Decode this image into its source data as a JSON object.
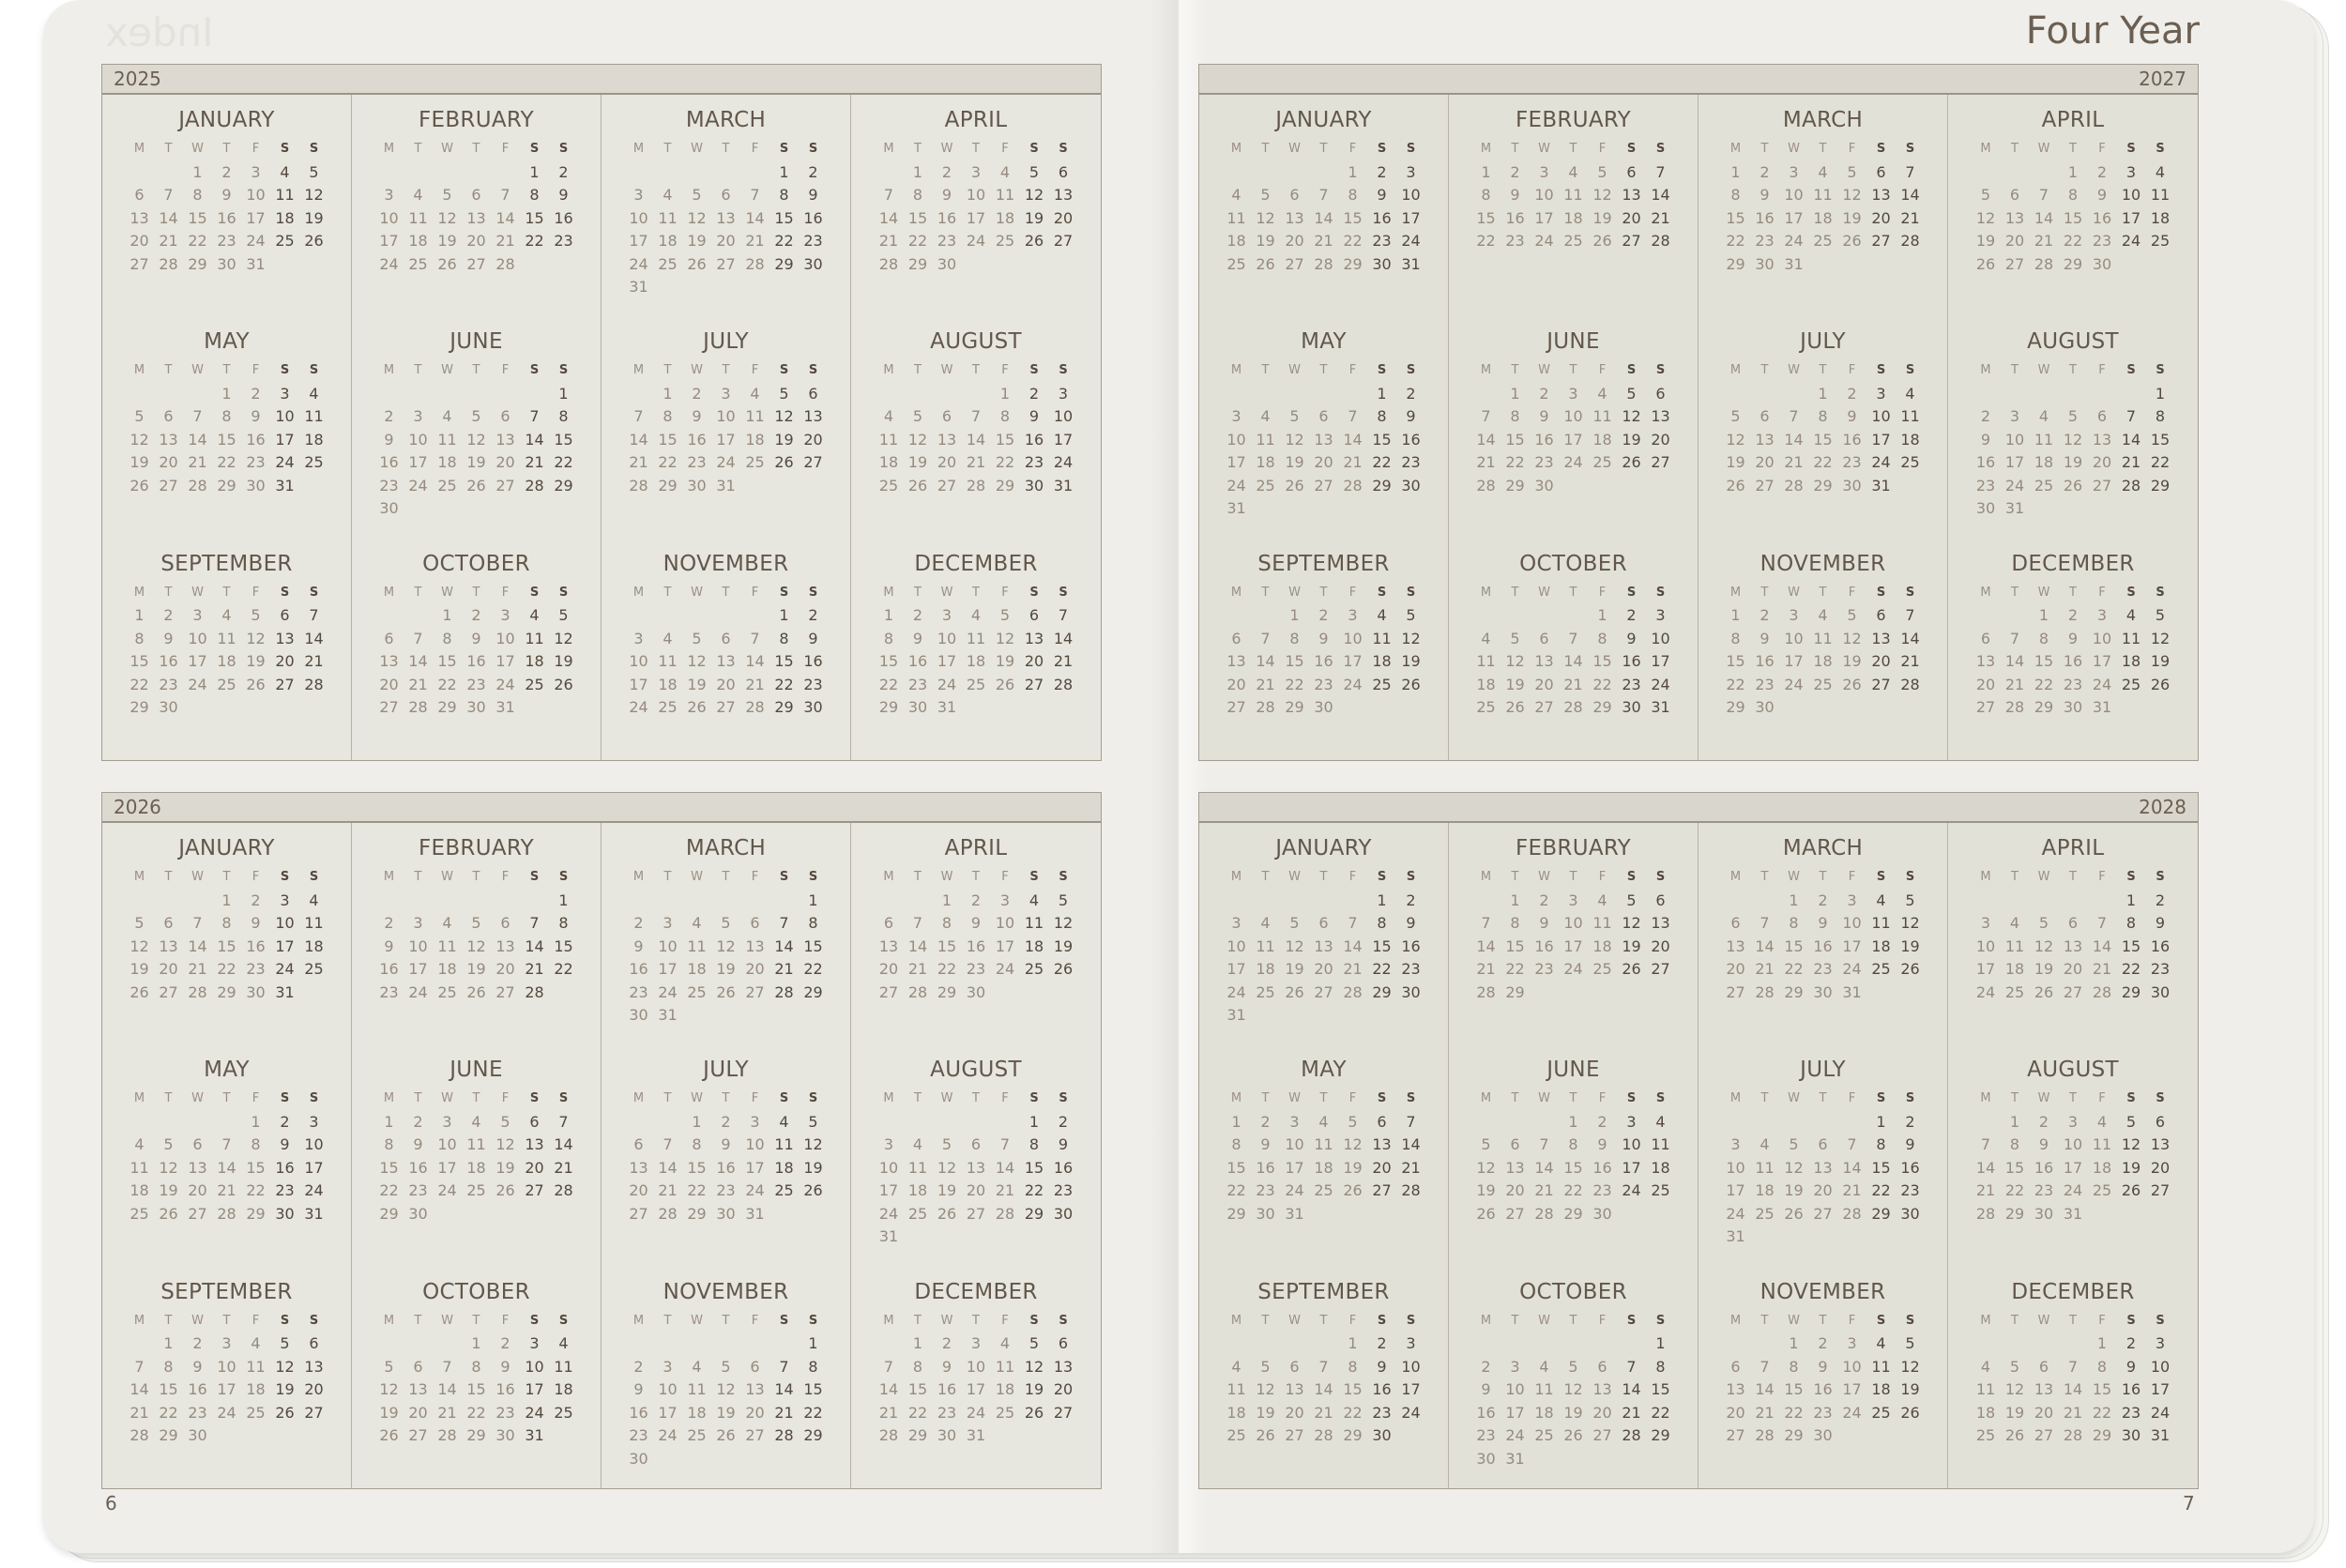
{
  "header": {
    "title": "Four Year",
    "watermark": "Index"
  },
  "pages": {
    "left_number": "6",
    "right_number": "7"
  },
  "weekdays": [
    "M",
    "T",
    "W",
    "T",
    "F",
    "S",
    "S"
  ],
  "colors": {
    "text": "#6b5f52",
    "weekend": "#54493d",
    "weekday_dim": "#968b7e",
    "border": "#a59d92",
    "header_band": "#dcd9d0"
  },
  "years": [
    {
      "label": "2025",
      "months": [
        {
          "name": "JANUARY",
          "starts_on": "Wed",
          "days": 31
        },
        {
          "name": "FEBRUARY",
          "starts_on": "Sat",
          "days": 28
        },
        {
          "name": "MARCH",
          "starts_on": "Sat",
          "days": 31
        },
        {
          "name": "APRIL",
          "starts_on": "Tue",
          "days": 30
        },
        {
          "name": "MAY",
          "starts_on": "Thu",
          "days": 31
        },
        {
          "name": "JUNE",
          "starts_on": "Sun",
          "days": 30
        },
        {
          "name": "JULY",
          "starts_on": "Tue",
          "days": 31
        },
        {
          "name": "AUGUST",
          "starts_on": "Fri",
          "days": 31
        },
        {
          "name": "SEPTEMBER",
          "starts_on": "Mon",
          "days": 30
        },
        {
          "name": "OCTOBER",
          "starts_on": "Wed",
          "days": 31
        },
        {
          "name": "NOVEMBER",
          "starts_on": "Sat",
          "days": 30
        },
        {
          "name": "DECEMBER",
          "starts_on": "Mon",
          "days": 31
        }
      ]
    },
    {
      "label": "2026",
      "months": [
        {
          "name": "JANUARY",
          "starts_on": "Thu",
          "days": 31
        },
        {
          "name": "FEBRUARY",
          "starts_on": "Sun",
          "days": 28
        },
        {
          "name": "MARCH",
          "starts_on": "Sun",
          "days": 31
        },
        {
          "name": "APRIL",
          "starts_on": "Wed",
          "days": 30
        },
        {
          "name": "MAY",
          "starts_on": "Fri",
          "days": 31
        },
        {
          "name": "JUNE",
          "starts_on": "Mon",
          "days": 30
        },
        {
          "name": "JULY",
          "starts_on": "Wed",
          "days": 31
        },
        {
          "name": "AUGUST",
          "starts_on": "Sat",
          "days": 31
        },
        {
          "name": "SEPTEMBER",
          "starts_on": "Tue",
          "days": 30
        },
        {
          "name": "OCTOBER",
          "starts_on": "Thu",
          "days": 31
        },
        {
          "name": "NOVEMBER",
          "starts_on": "Sun",
          "days": 30
        },
        {
          "name": "DECEMBER",
          "starts_on": "Tue",
          "days": 31
        }
      ]
    },
    {
      "label": "2027",
      "months": [
        {
          "name": "JANUARY",
          "starts_on": "Fri",
          "days": 31
        },
        {
          "name": "FEBRUARY",
          "starts_on": "Mon",
          "days": 28
        },
        {
          "name": "MARCH",
          "starts_on": "Mon",
          "days": 31
        },
        {
          "name": "APRIL",
          "starts_on": "Thu",
          "days": 30
        },
        {
          "name": "MAY",
          "starts_on": "Sat",
          "days": 31
        },
        {
          "name": "JUNE",
          "starts_on": "Tue",
          "days": 30
        },
        {
          "name": "JULY",
          "starts_on": "Thu",
          "days": 31
        },
        {
          "name": "AUGUST",
          "starts_on": "Sun",
          "days": 31
        },
        {
          "name": "SEPTEMBER",
          "starts_on": "Wed",
          "days": 30
        },
        {
          "name": "OCTOBER",
          "starts_on": "Fri",
          "days": 31
        },
        {
          "name": "NOVEMBER",
          "starts_on": "Mon",
          "days": 30
        },
        {
          "name": "DECEMBER",
          "starts_on": "Wed",
          "days": 31
        }
      ]
    },
    {
      "label": "2028",
      "months": [
        {
          "name": "JANUARY",
          "starts_on": "Sat",
          "days": 31
        },
        {
          "name": "FEBRUARY",
          "starts_on": "Tue",
          "days": 29
        },
        {
          "name": "MARCH",
          "starts_on": "Wed",
          "days": 31
        },
        {
          "name": "APRIL",
          "starts_on": "Sat",
          "days": 30
        },
        {
          "name": "MAY",
          "starts_on": "Mon",
          "days": 31
        },
        {
          "name": "JUNE",
          "starts_on": "Thu",
          "days": 30
        },
        {
          "name": "JULY",
          "starts_on": "Sat",
          "days": 31
        },
        {
          "name": "AUGUST",
          "starts_on": "Tue",
          "days": 31
        },
        {
          "name": "SEPTEMBER",
          "starts_on": "Fri",
          "days": 30
        },
        {
          "name": "OCTOBER",
          "starts_on": "Sun",
          "days": 31
        },
        {
          "name": "NOVEMBER",
          "starts_on": "Wed",
          "days": 30
        },
        {
          "name": "DECEMBER",
          "starts_on": "Fri",
          "days": 31
        }
      ]
    }
  ]
}
